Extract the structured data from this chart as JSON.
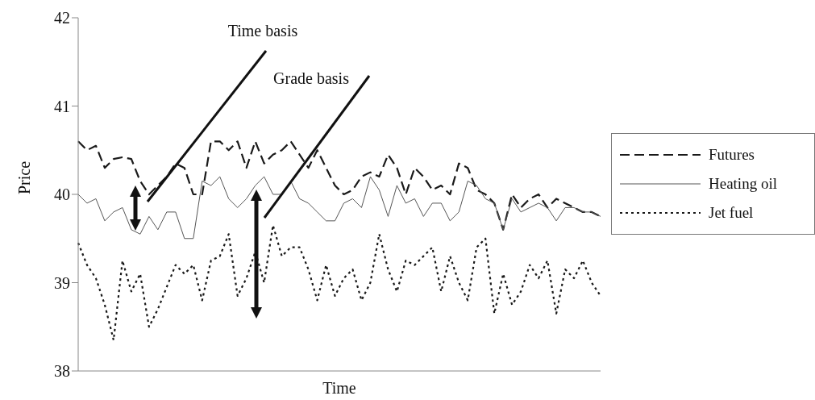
{
  "chart_data": {
    "type": "line",
    "xlabel": "Time",
    "ylabel": "Price",
    "ylim": [
      38,
      42
    ],
    "yticks": [
      38,
      39,
      40,
      41,
      42
    ],
    "legend": "right",
    "marker": "none",
    "categories": [
      null,
      null,
      null,
      null,
      null,
      null,
      null,
      null,
      null,
      null,
      null,
      null,
      null,
      null,
      null,
      null,
      null,
      null,
      null,
      null,
      null,
      null,
      null,
      null,
      null,
      null,
      null,
      null,
      null,
      null,
      null,
      null,
      null,
      null,
      null,
      null,
      null,
      null,
      null,
      null,
      null,
      null,
      null,
      null,
      null,
      null,
      null,
      null,
      null,
      null,
      null,
      null,
      null,
      null,
      null,
      null,
      null,
      null,
      null,
      null
    ],
    "series": [
      {
        "name": "Futures",
        "color": "#1a1a1a",
        "line_style": "dashed",
        "values": [
          40.6,
          40.5,
          40.55,
          40.3,
          40.4,
          40.42,
          40.4,
          40.15,
          40.0,
          40.1,
          40.2,
          40.35,
          40.3,
          40.0,
          40.0,
          40.6,
          40.6,
          40.5,
          40.6,
          40.3,
          40.6,
          40.35,
          40.45,
          40.5,
          40.6,
          40.45,
          40.3,
          40.5,
          40.3,
          40.1,
          40.0,
          40.05,
          40.2,
          40.25,
          40.2,
          40.45,
          40.3,
          40.0,
          40.3,
          40.2,
          40.05,
          40.1,
          40.0,
          40.35,
          40.3,
          40.05,
          40.0,
          39.9,
          39.6,
          40.0,
          39.85,
          39.95,
          40.0,
          39.85,
          39.95,
          39.9,
          39.85,
          39.8,
          39.8,
          39.75
        ]
      },
      {
        "name": "Heating oil",
        "color": "#555555",
        "line_style": "solid",
        "values": [
          40.0,
          39.9,
          39.95,
          39.7,
          39.8,
          39.85,
          39.6,
          39.55,
          39.75,
          39.6,
          39.8,
          39.8,
          39.5,
          39.5,
          40.15,
          40.1,
          40.2,
          39.95,
          39.85,
          39.95,
          40.1,
          40.2,
          40.0,
          40.0,
          40.15,
          39.95,
          39.9,
          39.8,
          39.7,
          39.7,
          39.9,
          39.95,
          39.85,
          40.2,
          40.05,
          39.75,
          40.1,
          39.9,
          39.95,
          39.75,
          39.9,
          39.9,
          39.7,
          39.8,
          40.15,
          40.1,
          39.95,
          39.9,
          39.6,
          39.95,
          39.8,
          39.85,
          39.9,
          39.85,
          39.7,
          39.85,
          39.85,
          39.8,
          39.8,
          39.75
        ]
      },
      {
        "name": "Jet fuel",
        "color": "#1a1a1a",
        "line_style": "dotted",
        "values": [
          39.45,
          39.2,
          39.05,
          38.75,
          38.35,
          39.25,
          38.9,
          39.1,
          38.5,
          38.7,
          38.95,
          39.2,
          39.1,
          39.2,
          38.8,
          39.25,
          39.3,
          39.55,
          38.85,
          39.05,
          39.35,
          39.0,
          39.65,
          39.3,
          39.4,
          39.4,
          39.15,
          38.8,
          39.2,
          38.85,
          39.05,
          39.15,
          38.8,
          39.0,
          39.55,
          39.15,
          38.9,
          39.25,
          39.2,
          39.3,
          39.4,
          38.9,
          39.3,
          39.0,
          38.8,
          39.4,
          39.5,
          38.65,
          39.1,
          38.75,
          38.9,
          39.2,
          39.05,
          39.25,
          38.65,
          39.15,
          39.05,
          39.25,
          39.0,
          38.85
        ]
      }
    ],
    "annotations": [
      "Time basis",
      "Grade basis"
    ]
  }
}
